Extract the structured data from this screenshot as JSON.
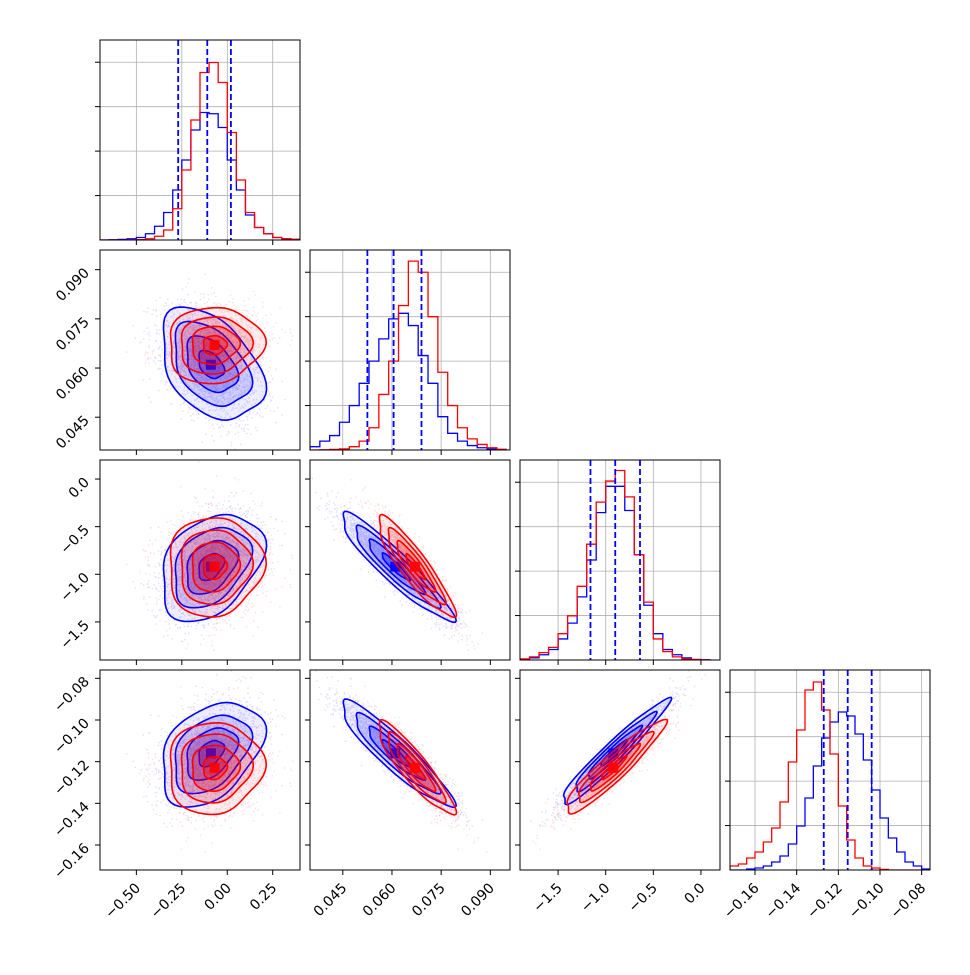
{
  "chart_data": {
    "type": "corner",
    "series": [
      {
        "name": "",
        "color": "#0000ff"
      },
      {
        "name": "",
        "color": "#ff0000"
      }
    ],
    "params": [
      {
        "range": [
          -0.7,
          0.4
        ],
        "ticks": [
          "−0.50",
          "−0.25",
          "0.00",
          "0.25"
        ],
        "tick_values": [
          -0.5,
          -0.25,
          0.0,
          0.25
        ]
      },
      {
        "range": [
          0.035,
          0.096
        ],
        "ticks": [
          "0.045",
          "0.060",
          "0.075",
          "0.090"
        ],
        "tick_values": [
          0.045,
          0.06,
          0.075,
          0.09
        ]
      },
      {
        "range": [
          -1.9,
          0.2
        ],
        "ticks": [
          "−1.5",
          "−1.0",
          "−0.5",
          "0.0"
        ],
        "tick_values": [
          -1.5,
          -1.0,
          -0.5,
          0.0
        ]
      },
      {
        "range": [
          -0.172,
          -0.076
        ],
        "ticks": [
          "−0.16",
          "−0.14",
          "−0.12",
          "−0.10",
          "−0.08"
        ],
        "tick_values": [
          -0.16,
          -0.14,
          -0.12,
          -0.1,
          -0.08
        ]
      }
    ],
    "diag": [
      {
        "bins": [
          -0.7,
          -0.65,
          -0.6,
          -0.55,
          -0.5,
          -0.45,
          -0.4,
          -0.35,
          -0.3,
          -0.25,
          -0.2,
          -0.15,
          -0.1,
          -0.05,
          0.0,
          0.05,
          0.1,
          0.15,
          0.2,
          0.25,
          0.3,
          0.35,
          0.4
        ],
        "blue": [
          0,
          0.2,
          0.5,
          1,
          2,
          5,
          11,
          22,
          40,
          64,
          88,
          102,
          101,
          90,
          64,
          40,
          20,
          10,
          5,
          2,
          1,
          0.5
        ],
        "red": [
          0,
          0,
          0,
          0.1,
          0.3,
          1,
          3,
          8,
          25,
          56,
          96,
          134,
          142,
          126,
          86,
          48,
          22,
          10,
          5,
          2,
          1,
          0.5
        ],
        "ymax": 160,
        "quantiles": [
          -0.27,
          -0.11,
          0.02
        ]
      },
      {
        "bins": [
          0.035,
          0.038,
          0.041,
          0.044,
          0.047,
          0.05,
          0.053,
          0.056,
          0.059,
          0.062,
          0.065,
          0.068,
          0.071,
          0.074,
          0.077,
          0.08,
          0.083,
          0.086,
          0.089,
          0.092,
          0.095
        ],
        "blue": [
          3,
          8,
          13,
          25,
          40,
          60,
          80,
          100,
          118,
          123,
          112,
          85,
          60,
          30,
          15,
          8,
          4,
          2,
          1,
          0.5
        ],
        "red": [
          0,
          0.2,
          0.5,
          1,
          3,
          8,
          20,
          50,
          80,
          130,
          170,
          160,
          120,
          70,
          40,
          20,
          10,
          5,
          2,
          0.5
        ],
        "ymax": 180,
        "quantiles": [
          0.0525,
          0.0605,
          0.069
        ]
      },
      {
        "bins": [
          -1.9,
          -1.8,
          -1.7,
          -1.6,
          -1.5,
          -1.4,
          -1.3,
          -1.2,
          -1.1,
          -1.0,
          -0.9,
          -0.8,
          -0.7,
          -0.6,
          -0.5,
          -0.4,
          -0.3,
          -0.2,
          -0.1,
          0.0,
          0.1
        ],
        "blue": [
          0.5,
          2,
          5,
          10,
          20,
          35,
          60,
          95,
          140,
          165,
          165,
          142,
          100,
          52,
          25,
          10,
          5,
          2,
          0.5,
          0.2
        ],
        "red": [
          1,
          3,
          7,
          12,
          25,
          42,
          70,
          110,
          150,
          170,
          180,
          155,
          100,
          55,
          20,
          8,
          3,
          1,
          0.5,
          0.1
        ],
        "ymax": 190,
        "quantiles": [
          -1.16,
          -0.9,
          -0.64
        ]
      },
      {
        "bins": [
          -0.172,
          -0.168,
          -0.164,
          -0.16,
          -0.156,
          -0.152,
          -0.148,
          -0.144,
          -0.14,
          -0.136,
          -0.132,
          -0.128,
          -0.124,
          -0.12,
          -0.116,
          -0.112,
          -0.108,
          -0.104,
          -0.1,
          -0.096,
          -0.092,
          -0.088,
          -0.084,
          -0.08,
          -0.076
        ],
        "blue": [
          0,
          0,
          0.5,
          1,
          2,
          4,
          7,
          13,
          22,
          36,
          52,
          66,
          74,
          79,
          77,
          68,
          55,
          40,
          26,
          16,
          9,
          4,
          2,
          0.5
        ],
        "red": [
          2,
          3,
          6,
          9,
          14,
          21,
          34,
          54,
          70,
          90,
          94,
          80,
          58,
          32,
          15,
          6,
          2,
          1,
          0.3,
          0,
          0,
          0,
          0,
          0
        ],
        "ymax": 100,
        "quantiles": [
          -0.127,
          -0.1155,
          -0.104
        ]
      }
    ],
    "cov": {
      "blue": {
        "mean": [
          -0.09,
          0.061,
          -0.92,
          -0.116
        ],
        "sd": [
          0.14,
          0.0085,
          0.28,
          0.0125
        ]
      },
      "red": {
        "mean": [
          -0.07,
          0.067,
          -0.92,
          -0.123
        ],
        "sd": [
          0.13,
          0.0058,
          0.26,
          0.011
        ]
      },
      "corr_blue": [
        [
          1,
          -0.4,
          0.35,
          0.38
        ],
        [
          -0.4,
          1,
          -0.93,
          -0.92
        ],
        [
          0.35,
          -0.93,
          1,
          0.96
        ],
        [
          0.38,
          -0.92,
          0.96,
          1
        ]
      ],
      "corr_red": [
        [
          1,
          0.05,
          0.05,
          0.05
        ],
        [
          0.05,
          1,
          -0.9,
          -0.9
        ],
        [
          0.05,
          -0.9,
          1,
          0.93
        ],
        [
          0.05,
          -0.9,
          0.93,
          1
        ]
      ]
    }
  }
}
